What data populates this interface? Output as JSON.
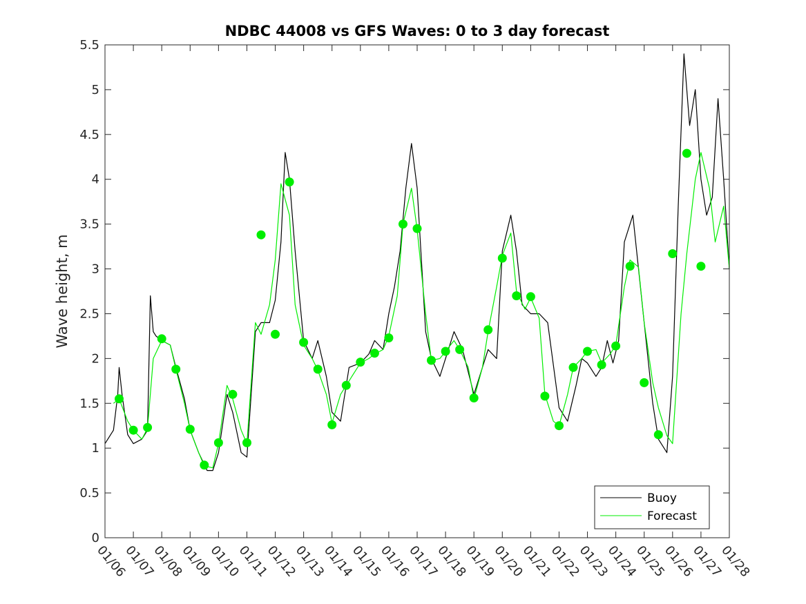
{
  "chart_data": {
    "type": "line",
    "title": "NDBC 44008 vs GFS Waves: 0 to 3 day forecast",
    "xlabel": "",
    "ylabel": "Wave height, m",
    "ylim": [
      0,
      5.5
    ],
    "yticks": [
      0,
      0.5,
      1,
      1.5,
      2,
      2.5,
      3,
      3.5,
      4,
      4.5,
      5,
      5.5
    ],
    "ytick_labels": [
      "0",
      "0.5",
      "1",
      "1.5",
      "2",
      "2.5",
      "3",
      "3.5",
      "4",
      "4.5",
      "5",
      "5.5"
    ],
    "xlim_days": [
      0,
      22
    ],
    "x_tick_labels": [
      "01/06",
      "01/07",
      "01/08",
      "01/09",
      "01/10",
      "01/11",
      "01/12",
      "01/13",
      "01/14",
      "01/15",
      "01/16",
      "01/17",
      "01/18",
      "01/19",
      "01/20",
      "01/21",
      "01/22",
      "01/23",
      "01/24",
      "01/25",
      "01/26",
      "01/27",
      "01/28"
    ],
    "legend": {
      "location": "bottom-right",
      "entries": [
        {
          "label": "Buoy",
          "color": "#000000"
        },
        {
          "label": "Forecast",
          "color": "#00ee00"
        }
      ]
    },
    "buoy": {
      "name": "Buoy",
      "color": "#000000",
      "x": [
        0,
        0.3,
        0.45,
        0.5,
        0.6,
        0.8,
        1.0,
        1.3,
        1.5,
        1.6,
        1.7,
        1.8,
        2.0,
        2.3,
        2.5,
        2.8,
        3.0,
        3.3,
        3.6,
        3.8,
        4.0,
        4.3,
        4.5,
        4.8,
        5.0,
        5.3,
        5.5,
        5.8,
        6.0,
        6.2,
        6.35,
        6.5,
        6.7,
        7.0,
        7.3,
        7.5,
        7.8,
        8.0,
        8.3,
        8.6,
        9.0,
        9.3,
        9.5,
        9.8,
        10.0,
        10.2,
        10.4,
        10.6,
        10.8,
        11.0,
        11.3,
        11.5,
        11.8,
        12.0,
        12.3,
        12.6,
        13.0,
        13.3,
        13.5,
        13.8,
        14.0,
        14.3,
        14.5,
        14.7,
        15.0,
        15.3,
        15.6,
        16.0,
        16.3,
        16.6,
        16.8,
        17.0,
        17.3,
        17.5,
        17.7,
        17.9,
        18.1,
        18.3,
        18.6,
        18.8,
        19.0,
        19.3,
        19.5,
        19.8,
        20.0,
        20.2,
        20.4,
        20.6,
        20.8,
        21.0,
        21.2,
        21.4,
        21.6,
        21.8,
        22.0
      ],
      "y": [
        1.05,
        1.2,
        1.6,
        1.9,
        1.6,
        1.15,
        1.05,
        1.1,
        1.2,
        2.7,
        2.3,
        2.25,
        2.2,
        2.15,
        1.9,
        1.55,
        1.2,
        0.95,
        0.75,
        0.75,
        0.95,
        1.6,
        1.4,
        0.95,
        0.9,
        2.3,
        2.4,
        2.4,
        2.65,
        3.3,
        4.3,
        4.0,
        3.2,
        2.2,
        2.0,
        2.2,
        1.8,
        1.4,
        1.3,
        1.9,
        1.95,
        2.05,
        2.2,
        2.1,
        2.5,
        2.8,
        3.2,
        3.9,
        4.4,
        3.9,
        2.3,
        2.0,
        1.8,
        2.0,
        2.3,
        2.1,
        1.6,
        1.9,
        2.1,
        2.0,
        3.2,
        3.6,
        3.2,
        2.6,
        2.5,
        2.5,
        2.4,
        1.45,
        1.3,
        1.7,
        2.0,
        1.95,
        1.8,
        1.9,
        2.2,
        1.95,
        2.2,
        3.3,
        3.6,
        3.0,
        2.4,
        1.5,
        1.1,
        0.95,
        1.8,
        3.7,
        5.4,
        4.6,
        5.0,
        4.0,
        3.6,
        3.8,
        4.9,
        4.0,
        3.0
      ]
    },
    "forecast_series": [
      {
        "name": "Forecast",
        "color": "#00ee00",
        "x": [
          0.3,
          0.5,
          0.8,
          1.0,
          1.3,
          1.5,
          1.7,
          2.0,
          2.3,
          2.5,
          2.8,
          3.0,
          3.3,
          3.5,
          3.8,
          4.0,
          4.3,
          4.5,
          4.8,
          5.0,
          5.3,
          5.5,
          5.8,
          6.0,
          6.2,
          6.5,
          6.7,
          7.0,
          7.3,
          7.5,
          7.8,
          8.0,
          8.3,
          8.5,
          8.8,
          9.0,
          9.3,
          9.5,
          9.8,
          10.0,
          10.3,
          10.5,
          10.8,
          11.0,
          11.3,
          11.5,
          11.8,
          12.0,
          12.3,
          12.5,
          12.8,
          13.0,
          13.3,
          13.5,
          13.8,
          14.0,
          14.3,
          14.5,
          14.8,
          15.0,
          15.3,
          15.5,
          15.8,
          16.0,
          16.3,
          16.5,
          16.8,
          17.0,
          17.3,
          17.5,
          17.8,
          18.0,
          18.3,
          18.5,
          18.8,
          19.0,
          19.3,
          19.5,
          19.8,
          20.0,
          20.3,
          20.5,
          20.8,
          21.0,
          21.3,
          21.5,
          21.8,
          22.0
        ],
        "y": [
          1.5,
          1.55,
          1.3,
          1.2,
          1.1,
          1.22,
          2.0,
          2.2,
          2.15,
          1.88,
          1.5,
          1.2,
          0.95,
          0.8,
          0.78,
          1.05,
          1.7,
          1.55,
          1.2,
          1.05,
          2.4,
          2.27,
          2.6,
          3.1,
          3.95,
          3.6,
          2.6,
          2.15,
          2.0,
          1.87,
          1.6,
          1.28,
          1.6,
          1.7,
          1.85,
          1.95,
          2.0,
          2.05,
          2.1,
          2.25,
          2.7,
          3.5,
          3.9,
          3.44,
          2.5,
          1.98,
          2.0,
          2.08,
          2.2,
          2.1,
          1.9,
          1.55,
          1.9,
          2.3,
          2.8,
          3.15,
          3.4,
          2.75,
          2.55,
          2.68,
          2.45,
          1.6,
          1.3,
          1.25,
          1.6,
          1.9,
          2.0,
          2.08,
          2.1,
          1.95,
          2.05,
          2.15,
          2.8,
          3.1,
          3.02,
          2.4,
          1.73,
          1.45,
          1.14,
          1.05,
          2.5,
          3.17,
          4.0,
          4.3,
          3.9,
          3.3,
          3.7,
          3.0
        ]
      }
    ],
    "forecast_markers": {
      "name": "Forecast",
      "color": "#00ee00",
      "x": [
        0.5,
        1.0,
        1.5,
        2.0,
        2.5,
        3.0,
        3.5,
        4.0,
        4.5,
        5.0,
        5.5,
        6.0,
        6.5,
        7.0,
        7.5,
        8.0,
        8.5,
        9.0,
        9.5,
        10.0,
        10.5,
        11.0,
        11.5,
        12.0,
        12.5,
        13.0,
        13.5,
        14.0,
        14.5,
        15.0,
        15.5,
        16.0,
        16.5,
        17.0,
        17.5,
        18.0,
        18.5,
        19.0,
        19.5,
        20.0,
        20.5,
        21.0
      ],
      "y": [
        1.55,
        1.2,
        1.23,
        2.22,
        1.88,
        1.21,
        0.81,
        1.06,
        1.6,
        1.06,
        3.38,
        2.27,
        3.97,
        2.18,
        1.88,
        1.26,
        1.7,
        1.96,
        2.06,
        2.23,
        3.5,
        3.45,
        1.98,
        2.08,
        2.1,
        1.56,
        2.32,
        3.12,
        2.7,
        2.69,
        1.58,
        1.25,
        1.9,
        2.08,
        1.93,
        2.14,
        3.03,
        1.73,
        1.15,
        3.17,
        4.29,
        3.03
      ]
    }
  }
}
